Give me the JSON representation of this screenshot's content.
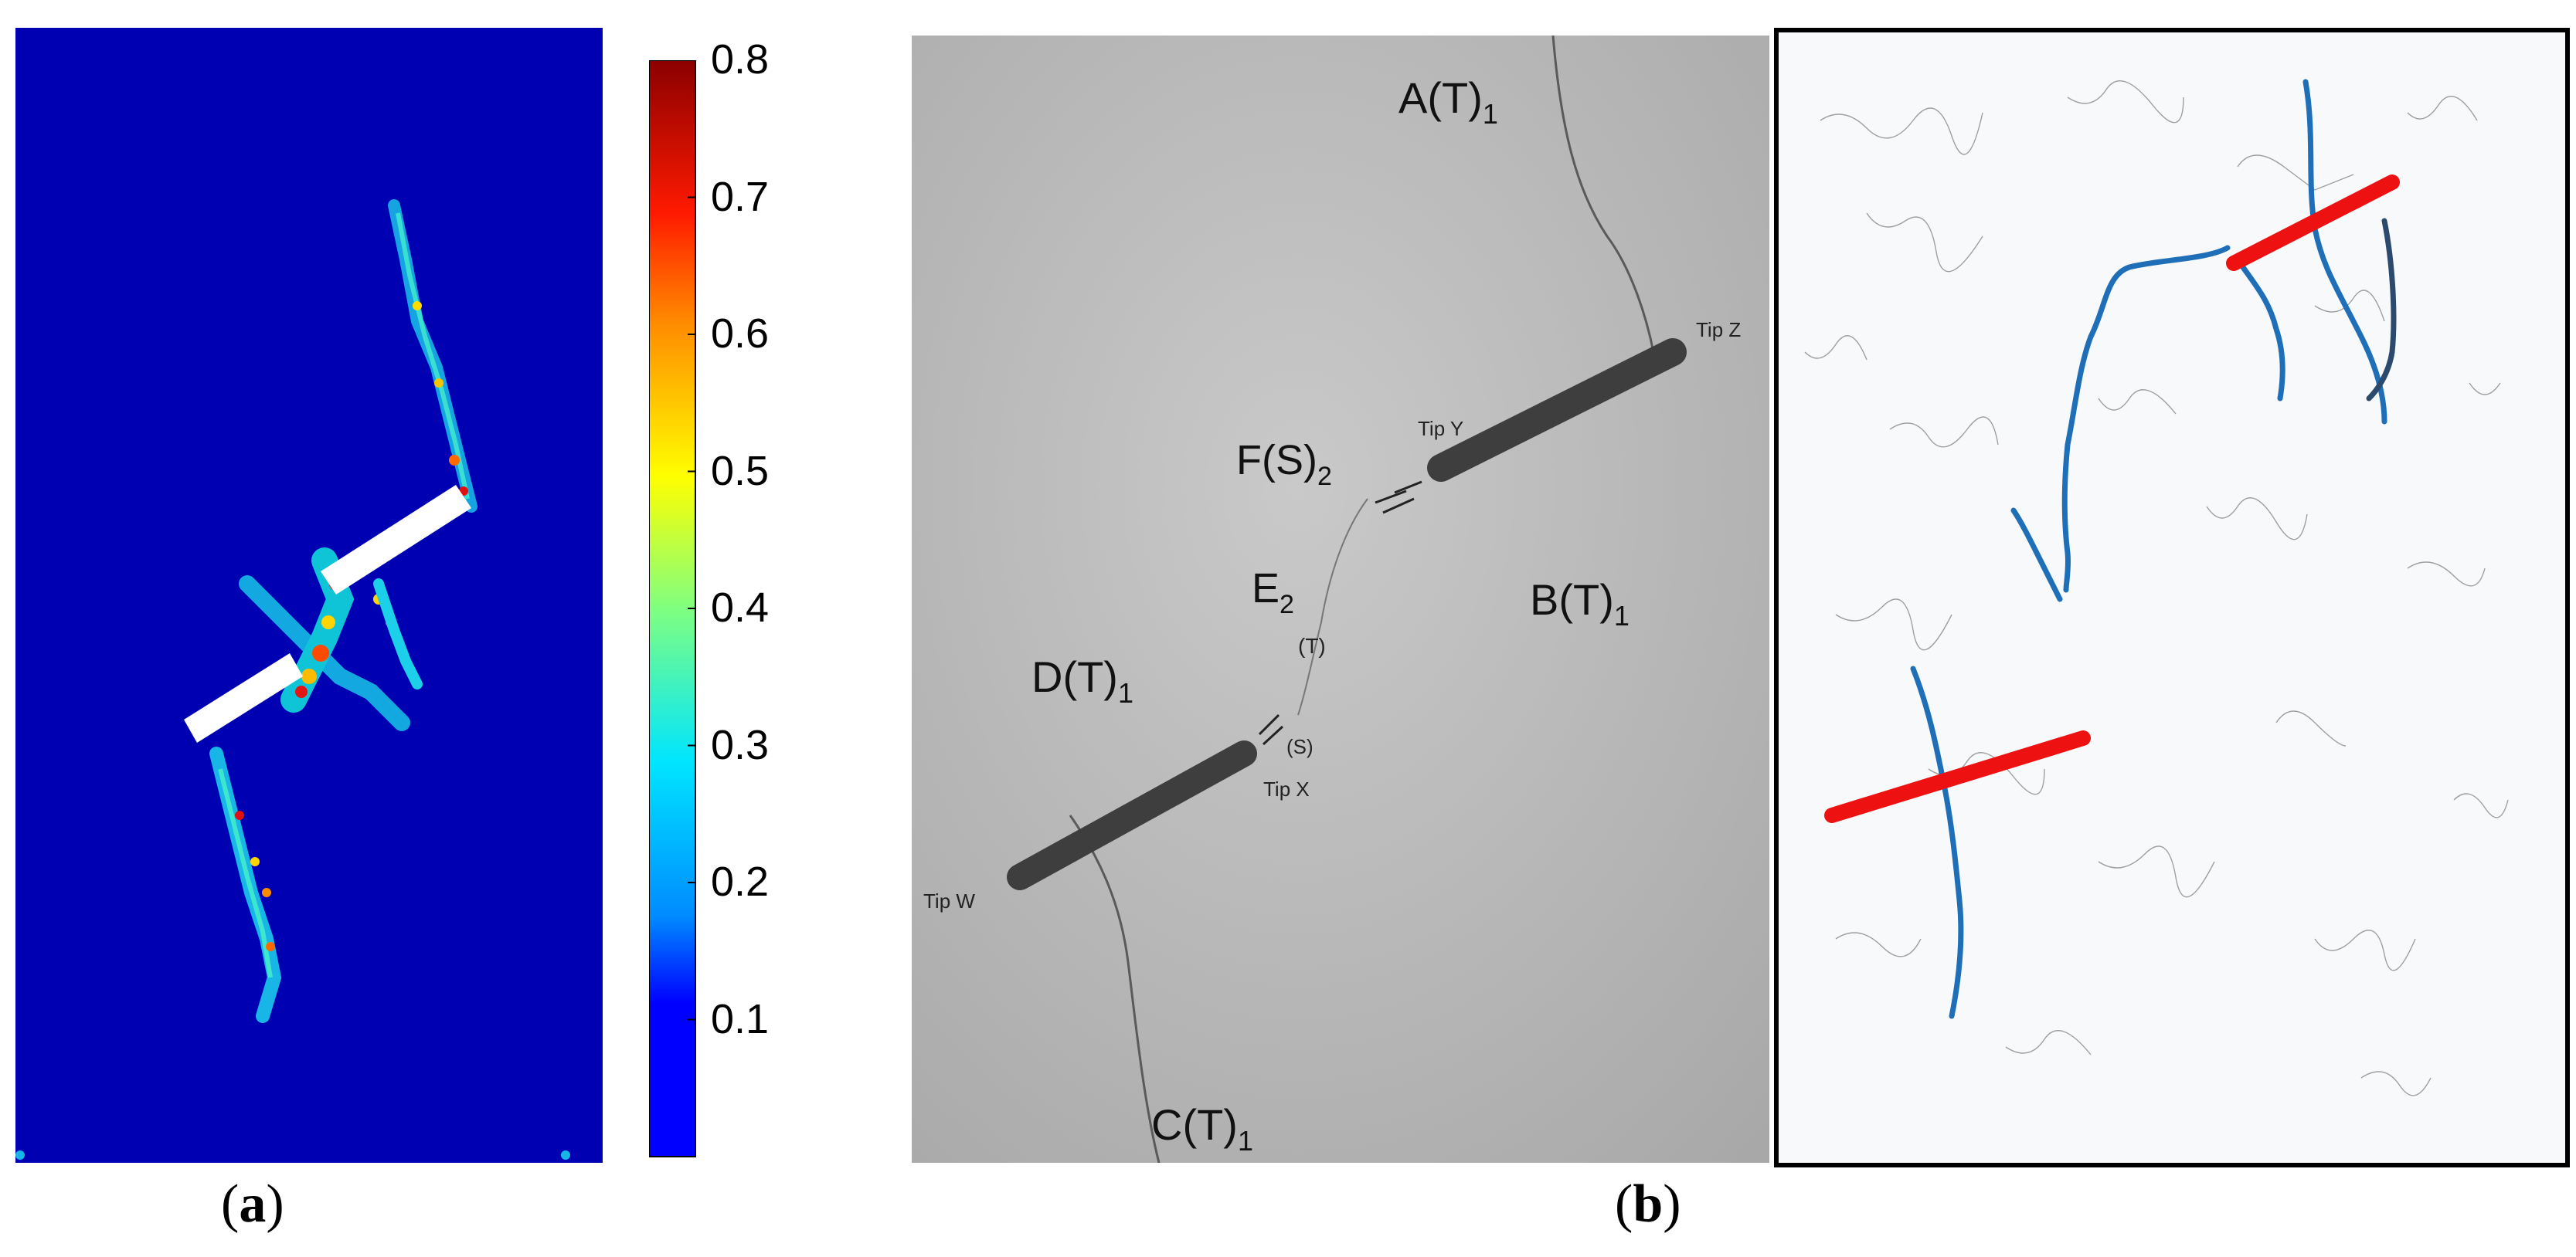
{
  "panel_a": {
    "caption_label": "a",
    "colorbar": {
      "ticks": [
        "0.8",
        "0.7",
        "0.6",
        "0.5",
        "0.4",
        "0.3",
        "0.2",
        "0.1"
      ],
      "tick_values": [
        0.8,
        0.7,
        0.6,
        0.5,
        0.4,
        0.3,
        0.2,
        0.1
      ],
      "range": [
        0,
        0.8
      ],
      "colors": [
        "#00007f",
        "#0000ff",
        "#00ffff",
        "#ffff00",
        "#ff0000",
        "#7f0000"
      ]
    },
    "background_color": "#0000b3",
    "flaw_color": "#ffffff"
  },
  "panel_b": {
    "caption_label": "b",
    "photo_labels": {
      "a": "A(T)",
      "a_sub": "1",
      "b": "B(T)",
      "b_sub": "1",
      "c": "C(T)",
      "c_sub": "1",
      "d": "D(T)",
      "d_sub": "1",
      "e": "E",
      "e_sub": "2",
      "e_t": "(T)",
      "f": "F(S)",
      "f_sub": "2",
      "s": "(S)",
      "tip_w": "Tip W",
      "tip_x": "Tip X",
      "tip_y": "Tip Y",
      "tip_z": "Tip Z"
    },
    "simulation_colors": {
      "flaw": "#ee1111",
      "crack": "#1f6fb8",
      "crack_dark": "#2c4a6e"
    }
  }
}
